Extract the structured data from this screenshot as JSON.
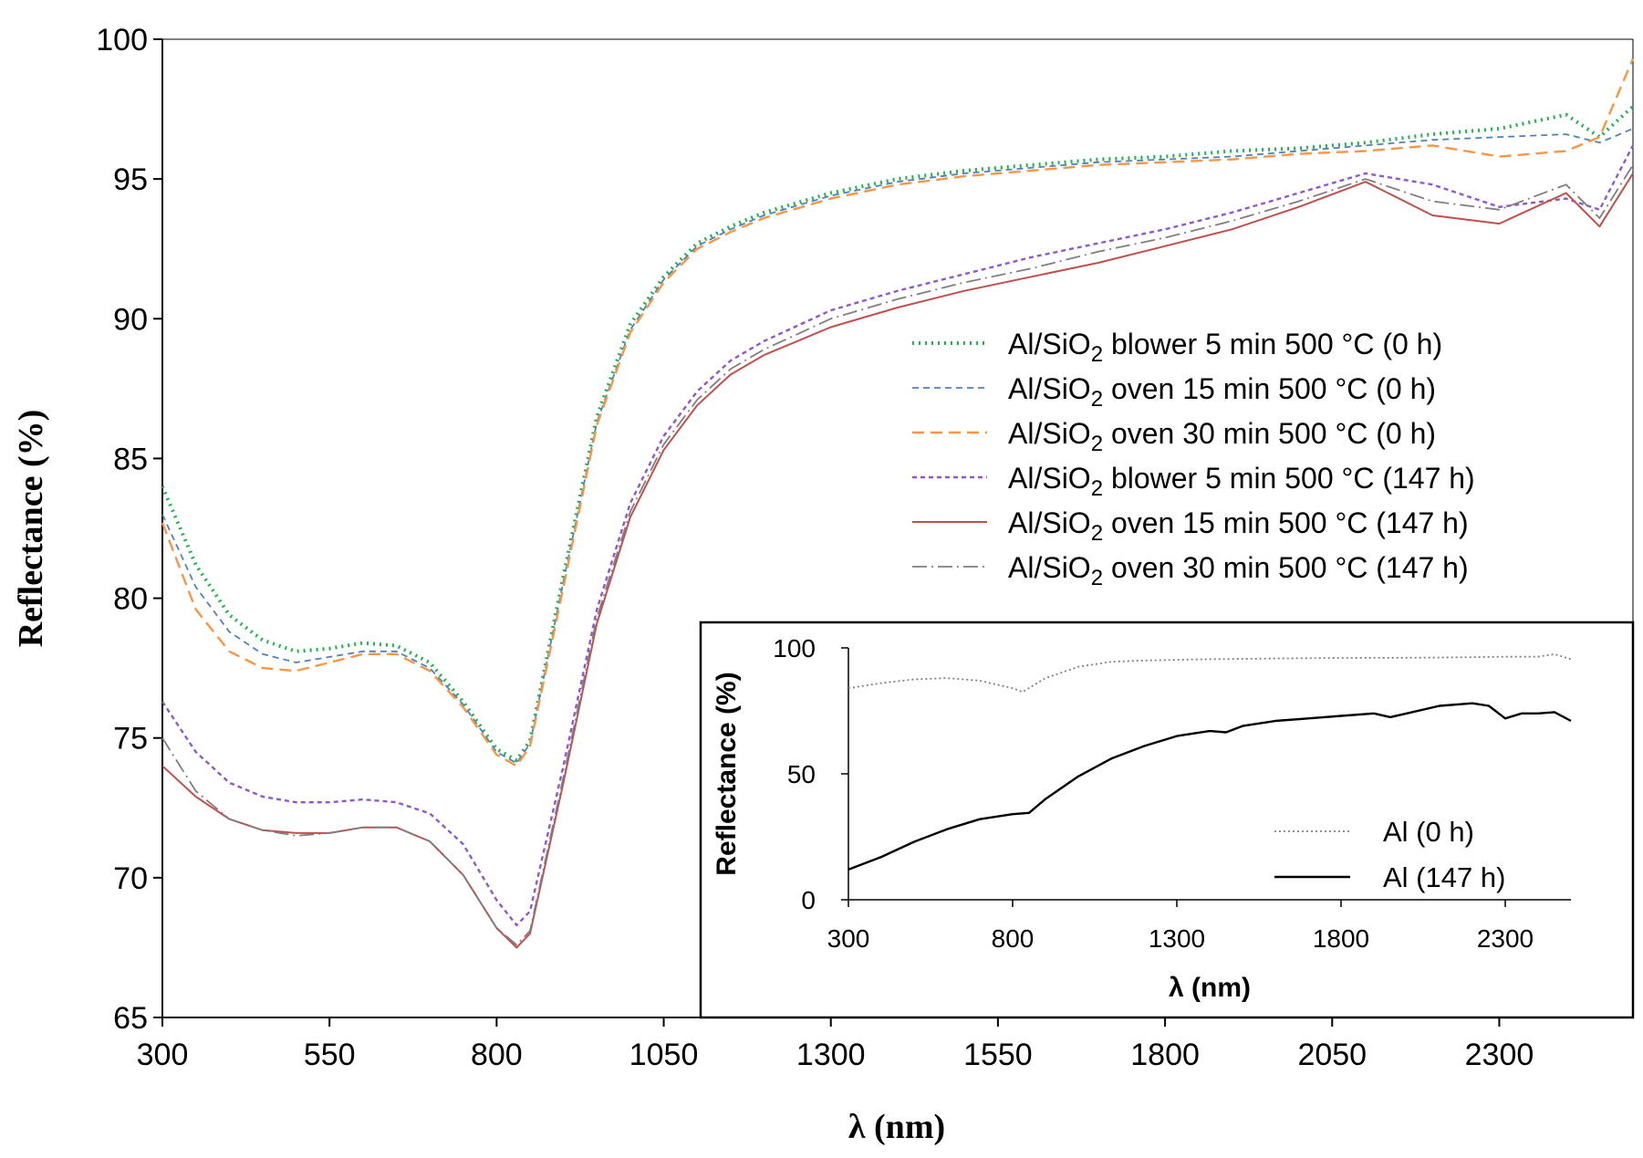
{
  "chart_data": [
    {
      "type": "line",
      "xlabel": "λ (nm)",
      "ylabel": "Reflectance (%)",
      "xlim": [
        300,
        2500
      ],
      "ylim": [
        65,
        100
      ],
      "xticks": [
        300,
        550,
        800,
        1050,
        1300,
        1550,
        1800,
        2050,
        2300
      ],
      "yticks": [
        65,
        70,
        75,
        80,
        85,
        90,
        95,
        100
      ],
      "legend_position": "right",
      "series": [
        {
          "name": "Al/SiO2 blower 5 min 500 °C (0 h)",
          "formula": "SiO",
          "subscript": "2",
          "prefix": "Al/",
          "suffix": " blower 5 min 500 °C (0 h)",
          "color": "#22b14c",
          "x": [
            300,
            350,
            400,
            450,
            500,
            550,
            600,
            650,
            700,
            750,
            800,
            830,
            850,
            900,
            950,
            1000,
            1050,
            1100,
            1150,
            1200,
            1300,
            1400,
            1500,
            1600,
            1700,
            1800,
            1900,
            2000,
            2100,
            2200,
            2300,
            2400,
            2450,
            2500
          ],
          "y": [
            84.0,
            81.2,
            79.4,
            78.5,
            78.1,
            78.2,
            78.4,
            78.3,
            77.7,
            76.3,
            74.6,
            74.2,
            74.9,
            80.8,
            86.5,
            89.8,
            91.5,
            92.7,
            93.3,
            93.8,
            94.5,
            95.0,
            95.3,
            95.5,
            95.7,
            95.8,
            96.0,
            96.1,
            96.3,
            96.6,
            96.8,
            97.3,
            96.5,
            97.6
          ]
        },
        {
          "name": "Al/SiO2 oven 15 min 500 °C (0 h)",
          "prefix": "Al/",
          "formula": "SiO",
          "subscript": "2",
          "suffix": " oven 15 min 500 °C (0 h)",
          "color": "#4f81bd",
          "x": [
            300,
            350,
            400,
            450,
            500,
            550,
            600,
            650,
            700,
            750,
            800,
            830,
            850,
            900,
            950,
            1000,
            1050,
            1100,
            1150,
            1200,
            1300,
            1400,
            1500,
            1600,
            1700,
            1800,
            1900,
            2000,
            2100,
            2200,
            2300,
            2400,
            2450,
            2500
          ],
          "y": [
            83.0,
            80.4,
            78.8,
            78.0,
            77.7,
            77.9,
            78.1,
            78.1,
            77.5,
            76.2,
            74.5,
            74.1,
            74.8,
            80.6,
            86.3,
            89.6,
            91.4,
            92.6,
            93.2,
            93.7,
            94.4,
            94.9,
            95.2,
            95.4,
            95.6,
            95.7,
            95.8,
            96.0,
            96.2,
            96.4,
            96.5,
            96.6,
            96.3,
            96.8
          ]
        },
        {
          "name": "Al/SiO2 oven 30 min 500 °C (0 h)",
          "prefix": "Al/",
          "formula": "SiO",
          "subscript": "2",
          "suffix": " oven 30 min 500 °C (0 h)",
          "color": "#f79646",
          "x": [
            300,
            350,
            400,
            450,
            500,
            550,
            600,
            650,
            700,
            750,
            800,
            830,
            850,
            900,
            950,
            1000,
            1050,
            1100,
            1150,
            1200,
            1300,
            1400,
            1500,
            1600,
            1700,
            1800,
            1900,
            2000,
            2100,
            2200,
            2300,
            2400,
            2450,
            2500
          ],
          "y": [
            82.7,
            79.6,
            78.1,
            77.5,
            77.4,
            77.7,
            78.0,
            78.0,
            77.4,
            76.1,
            74.4,
            74.0,
            74.7,
            80.4,
            86.2,
            89.5,
            91.3,
            92.5,
            93.1,
            93.6,
            94.3,
            94.8,
            95.1,
            95.3,
            95.5,
            95.6,
            95.7,
            95.9,
            96.0,
            96.2,
            95.8,
            96.0,
            96.5,
            99.3
          ]
        },
        {
          "name": "Al/SiO2 blower 5 min 500 °C (147 h)",
          "prefix": "Al/",
          "formula": "SiO",
          "subscript": "2",
          "suffix": " blower 5 min 500 °C (147 h)",
          "color": "#8e59c8",
          "x": [
            300,
            350,
            400,
            450,
            500,
            550,
            600,
            650,
            700,
            750,
            800,
            830,
            850,
            900,
            950,
            1000,
            1050,
            1100,
            1150,
            1200,
            1300,
            1400,
            1500,
            1600,
            1700,
            1800,
            1900,
            2000,
            2100,
            2200,
            2300,
            2400,
            2450,
            2500
          ],
          "y": [
            76.3,
            74.5,
            73.4,
            72.9,
            72.7,
            72.7,
            72.8,
            72.7,
            72.3,
            71.2,
            69.2,
            68.3,
            68.8,
            74.0,
            79.6,
            83.4,
            85.8,
            87.4,
            88.5,
            89.2,
            90.3,
            91.0,
            91.6,
            92.2,
            92.7,
            93.2,
            93.8,
            94.5,
            95.2,
            94.8,
            94.0,
            94.3,
            93.9,
            96.2
          ]
        },
        {
          "name": "Al/SiO2 oven 15 min 500 °C (147 h)",
          "prefix": "Al/",
          "formula": "SiO",
          "subscript": "2",
          "suffix": " oven 15 min 500 °C (147 h)",
          "color": "#c0504d",
          "x": [
            300,
            350,
            400,
            450,
            500,
            550,
            600,
            650,
            700,
            750,
            800,
            830,
            850,
            900,
            950,
            1000,
            1050,
            1100,
            1150,
            1200,
            1300,
            1400,
            1500,
            1600,
            1700,
            1800,
            1900,
            2000,
            2100,
            2200,
            2300,
            2400,
            2450,
            2500
          ],
          "y": [
            74.0,
            72.9,
            72.1,
            71.7,
            71.6,
            71.6,
            71.8,
            71.8,
            71.3,
            70.1,
            68.2,
            67.5,
            68.0,
            73.4,
            79.1,
            82.9,
            85.3,
            86.9,
            88.0,
            88.7,
            89.7,
            90.4,
            91.0,
            91.5,
            92.0,
            92.6,
            93.2,
            94.0,
            94.9,
            93.7,
            93.4,
            94.5,
            93.3,
            95.2
          ]
        },
        {
          "name": "Al/SiO2 oven 30 min 500 °C (147 h)",
          "prefix": "Al/",
          "formula": "SiO",
          "subscript": "2",
          "suffix": " oven 30 min 500 °C (147 h)",
          "color": "#7f7f7f",
          "x": [
            300,
            350,
            400,
            450,
            500,
            550,
            600,
            650,
            700,
            750,
            800,
            830,
            850,
            900,
            950,
            1000,
            1050,
            1100,
            1150,
            1200,
            1300,
            1400,
            1500,
            1600,
            1700,
            1800,
            1900,
            2000,
            2100,
            2200,
            2300,
            2400,
            2450,
            2500
          ],
          "y": [
            75.0,
            73.1,
            72.1,
            71.7,
            71.5,
            71.6,
            71.8,
            71.8,
            71.3,
            70.1,
            68.2,
            67.6,
            68.1,
            73.6,
            79.3,
            83.1,
            85.5,
            87.1,
            88.2,
            88.9,
            90.0,
            90.7,
            91.3,
            91.8,
            92.4,
            92.9,
            93.5,
            94.2,
            95.0,
            94.2,
            93.9,
            94.8,
            93.6,
            95.5
          ]
        }
      ]
    },
    {
      "type": "line",
      "role": "inset",
      "xlabel": "λ (nm)",
      "ylabel": "Reflectance (%)",
      "xlim": [
        300,
        2500
      ],
      "ylim": [
        0,
        100
      ],
      "xticks": [
        300,
        800,
        1300,
        1800,
        2300
      ],
      "yticks": [
        0,
        50,
        100
      ],
      "legend_position": "bottom-right",
      "series": [
        {
          "name": "Al (0 h)",
          "color": "#808080",
          "x": [
            300,
            400,
            500,
            600,
            700,
            800,
            830,
            900,
            1000,
            1100,
            1200,
            1400,
            1600,
            1800,
            2000,
            2200,
            2300,
            2400,
            2450,
            2500
          ],
          "y": [
            84,
            86,
            87.5,
            88,
            87,
            84,
            82.5,
            88,
            92.5,
            94.5,
            95,
            95.5,
            95.8,
            96,
            96.1,
            96.3,
            96.5,
            96.5,
            97.5,
            95.5
          ]
        },
        {
          "name": "Al (147 h)",
          "color": "#000000",
          "x": [
            300,
            400,
            500,
            600,
            700,
            800,
            850,
            900,
            1000,
            1100,
            1200,
            1300,
            1400,
            1450,
            1500,
            1600,
            1700,
            1800,
            1900,
            1950,
            2000,
            2100,
            2200,
            2250,
            2300,
            2350,
            2400,
            2450,
            2500
          ],
          "y": [
            12,
            17,
            23,
            28,
            32,
            34,
            34.5,
            40,
            49,
            56,
            61,
            65,
            67,
            66.5,
            69,
            71,
            72,
            73,
            74,
            72.5,
            74,
            77,
            78,
            77,
            72,
            74,
            74,
            74.5,
            71
          ]
        }
      ]
    }
  ]
}
